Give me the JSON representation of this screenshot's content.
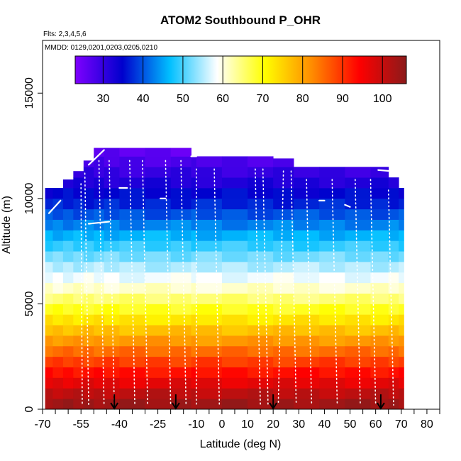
{
  "chart_data": {
    "type": "heatmap",
    "title": "ATOM2 Southbound P_OHR",
    "flights_note": "Flts: 2,3,4,5,6",
    "dates_note": "MMDD: 0129,0201,0203,0205,0210",
    "xlabel": "Latitude (deg N)",
    "ylabel": "Altitude (m)",
    "xlim": [
      -70,
      85
    ],
    "ylim": [
      0,
      17500
    ],
    "x_ticks": [
      -70,
      -55,
      -40,
      -25,
      -10,
      0,
      10,
      20,
      30,
      40,
      50,
      60,
      70,
      80
    ],
    "x_minor_ticks": [
      -65,
      -60,
      -50,
      -45,
      -35,
      -30,
      -20,
      -15,
      -5,
      5,
      15,
      25,
      35,
      45,
      55,
      65,
      75,
      85
    ],
    "y_ticks": [
      0,
      5000,
      10000,
      15000
    ],
    "colorbar": {
      "min": 23,
      "max": 106,
      "ticks": [
        30,
        40,
        50,
        60,
        70,
        80,
        90,
        100
      ],
      "colors": [
        "#7f00ff",
        "#0000cd",
        "#00bfff",
        "#ffffff",
        "#ffff00",
        "#ff8c00",
        "#ff0000",
        "#8b1a1a"
      ]
    },
    "pressure_rows": [
      {
        "alt": 250,
        "value": 104
      },
      {
        "alt": 750,
        "value": 101
      },
      {
        "alt": 1250,
        "value": 97
      },
      {
        "alt": 1750,
        "value": 93
      },
      {
        "alt": 2250,
        "value": 89
      },
      {
        "alt": 2750,
        "value": 85
      },
      {
        "alt": 3250,
        "value": 81
      },
      {
        "alt": 3750,
        "value": 77
      },
      {
        "alt": 4250,
        "value": 73
      },
      {
        "alt": 4750,
        "value": 69
      },
      {
        "alt": 5250,
        "value": 65
      },
      {
        "alt": 5750,
        "value": 61
      },
      {
        "alt": 6250,
        "value": 58
      },
      {
        "alt": 6750,
        "value": 55
      },
      {
        "alt": 7250,
        "value": 52
      },
      {
        "alt": 7750,
        "value": 49
      },
      {
        "alt": 8250,
        "value": 46
      },
      {
        "alt": 8750,
        "value": 43
      },
      {
        "alt": 9250,
        "value": 40
      },
      {
        "alt": 9750,
        "value": 37
      },
      {
        "alt": 10250,
        "value": 35
      },
      {
        "alt": 10750,
        "value": 32
      },
      {
        "alt": 11250,
        "value": 30
      },
      {
        "alt": 11750,
        "value": 28
      },
      {
        "alt": 12250,
        "value": 26
      }
    ],
    "data_columns": [
      {
        "lat_start": -69,
        "lat_end": -66,
        "top_alt": 10500
      },
      {
        "lat_start": -66,
        "lat_end": -62,
        "top_alt": 10500
      },
      {
        "lat_start": -62,
        "lat_end": -58,
        "top_alt": 10900
      },
      {
        "lat_start": -58,
        "lat_end": -54,
        "top_alt": 11300
      },
      {
        "lat_start": -54,
        "lat_end": -50,
        "top_alt": 11800
      },
      {
        "lat_start": -50,
        "lat_end": -46,
        "top_alt": 12400
      },
      {
        "lat_start": -46,
        "lat_end": -40,
        "top_alt": 12400
      },
      {
        "lat_start": -40,
        "lat_end": -30,
        "top_alt": 12400
      },
      {
        "lat_start": -30,
        "lat_end": -20,
        "top_alt": 12400
      },
      {
        "lat_start": -20,
        "lat_end": -12,
        "top_alt": 12400
      },
      {
        "lat_start": -12,
        "lat_end": -10,
        "top_alt": 12000
      },
      {
        "lat_start": -10,
        "lat_end": 0,
        "top_alt": 12000
      },
      {
        "lat_start": 0,
        "lat_end": 10,
        "top_alt": 12000
      },
      {
        "lat_start": 10,
        "lat_end": 20,
        "top_alt": 12000
      },
      {
        "lat_start": 20,
        "lat_end": 28,
        "top_alt": 11900
      },
      {
        "lat_start": 28,
        "lat_end": 38,
        "top_alt": 11500
      },
      {
        "lat_start": 38,
        "lat_end": 48,
        "top_alt": 11500
      },
      {
        "lat_start": 48,
        "lat_end": 58,
        "top_alt": 11500
      },
      {
        "lat_start": 58,
        "lat_end": 65,
        "top_alt": 11500
      },
      {
        "lat_start": 65,
        "lat_end": 69,
        "top_alt": 11000
      },
      {
        "lat_start": 69,
        "lat_end": 71,
        "top_alt": 10500
      }
    ],
    "level_legs": [
      {
        "lat_start": -67.5,
        "lat_end": -63,
        "alt_start": 9300,
        "alt_end": 9900
      },
      {
        "lat_start": -52,
        "lat_end": -44,
        "alt_start": 8800,
        "alt_end": 8900
      },
      {
        "lat_start": -52,
        "lat_end": -46,
        "alt_start": 11600,
        "alt_end": 12300
      },
      {
        "lat_start": -40,
        "lat_end": -37,
        "alt_start": 10500,
        "alt_end": 10500
      },
      {
        "lat_start": -24,
        "lat_end": -22,
        "alt_start": 10000,
        "alt_end": 10000
      },
      {
        "lat_start": -12,
        "lat_end": -10,
        "alt_start": 12000,
        "alt_end": 12000
      },
      {
        "lat_start": 61,
        "lat_end": 66,
        "alt_start": 11350,
        "alt_end": 11300
      },
      {
        "lat_start": 48,
        "lat_end": 50,
        "alt_start": 9700,
        "alt_end": 9600
      },
      {
        "lat_start": 38,
        "lat_end": 40,
        "alt_start": 9900,
        "alt_end": 9900
      }
    ],
    "profiles": [
      {
        "lat_top": -55,
        "lat_bottom": -54.5
      },
      {
        "lat_top": -53.5,
        "lat_bottom": -52
      },
      {
        "lat_top": -48,
        "lat_bottom": -46
      },
      {
        "lat_top": -44,
        "lat_bottom": -42
      },
      {
        "lat_top": -36,
        "lat_bottom": -34
      },
      {
        "lat_top": -31,
        "lat_bottom": -29
      },
      {
        "lat_top": -22,
        "lat_bottom": -20
      },
      {
        "lat_top": -16,
        "lat_bottom": -14
      },
      {
        "lat_top": -10,
        "lat_bottom": -10
      },
      {
        "lat_top": -3,
        "lat_bottom": -1
      },
      {
        "lat_top": 13,
        "lat_bottom": 15
      },
      {
        "lat_top": 16,
        "lat_bottom": 18
      },
      {
        "lat_top": 24,
        "lat_bottom": 22
      },
      {
        "lat_top": 27,
        "lat_bottom": 29
      },
      {
        "lat_top": 33,
        "lat_bottom": 35
      },
      {
        "lat_top": 43,
        "lat_bottom": 45
      },
      {
        "lat_top": 52,
        "lat_bottom": 54
      },
      {
        "lat_top": 58,
        "lat_bottom": 60
      },
      {
        "lat_top": 65,
        "lat_bottom": 67
      }
    ],
    "arrows": [
      {
        "lat": -42
      },
      {
        "lat": -18
      },
      {
        "lat": 20
      },
      {
        "lat": 62
      }
    ]
  }
}
